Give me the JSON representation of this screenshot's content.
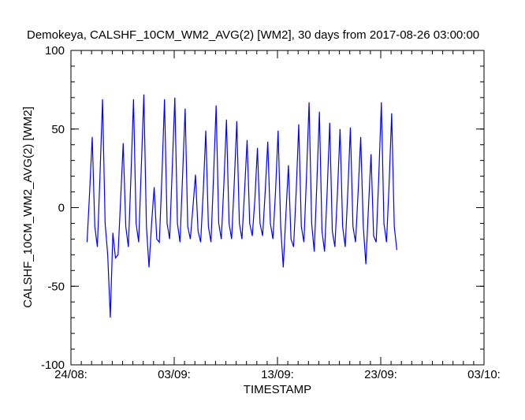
{
  "chart_data": {
    "type": "line",
    "title": "Demokeya, CALSHF_10CM_WM2_AVG(2) [WM2], 30 days from  2017-08-26 03:00:00",
    "x_label": "TIMESTAMP",
    "y_label": "CALSHF_10CM_WM2_AVG(2) [WM2]",
    "xlim": [
      0,
      40
    ],
    "xticks": [
      {
        "value": 0,
        "label": "24/08:"
      },
      {
        "value": 10,
        "label": "03/09:"
      },
      {
        "value": 20,
        "label": "13/09:"
      },
      {
        "value": 30,
        "label": "23/09:"
      },
      {
        "value": 40,
        "label": "03/10:"
      }
    ],
    "ylim": [
      -100,
      100
    ],
    "yticks": [
      -100,
      -50,
      0,
      50,
      100
    ],
    "x": [
      1.56,
      1.81,
      2.06,
      2.31,
      2.56,
      2.81,
      3.06,
      3.31,
      3.56,
      3.81,
      4.06,
      4.31,
      4.56,
      4.81,
      5.06,
      5.31,
      5.56,
      5.81,
      6.06,
      6.31,
      6.56,
      6.81,
      7.06,
      7.31,
      7.56,
      7.81,
      8.06,
      8.31,
      8.56,
      8.81,
      9.06,
      9.31,
      9.56,
      9.81,
      10.06,
      10.31,
      10.56,
      10.81,
      11.06,
      11.31,
      11.56,
      11.81,
      12.06,
      12.31,
      12.56,
      12.81,
      13.06,
      13.31,
      13.56,
      13.81,
      14.06,
      14.31,
      14.56,
      14.81,
      15.06,
      15.31,
      15.56,
      15.81,
      16.06,
      16.31,
      16.56,
      16.81,
      17.06,
      17.31,
      17.56,
      17.81,
      18.06,
      18.31,
      18.56,
      18.81,
      19.06,
      19.31,
      19.56,
      19.81,
      20.06,
      20.31,
      20.56,
      20.81,
      21.06,
      21.31,
      21.56,
      21.81,
      22.06,
      22.31,
      22.56,
      22.81,
      23.06,
      23.31,
      23.56,
      23.81,
      24.06,
      24.31,
      24.56,
      24.81,
      25.06,
      25.31,
      25.56,
      25.81,
      26.06,
      26.31,
      26.56,
      26.81,
      27.06,
      27.31,
      27.56,
      27.81,
      28.06,
      28.31,
      28.56,
      28.81,
      29.06,
      29.31,
      29.56,
      29.81,
      30.06,
      30.31,
      30.56,
      30.81,
      31.06,
      31.31,
      31.56
    ],
    "series": [
      {
        "color": "#0000ff",
        "values": [
          -22,
          10,
          45,
          -12,
          -25,
          20,
          69,
          -10,
          -30,
          -70,
          -16,
          -32,
          -30,
          5,
          41,
          -12,
          -25,
          20,
          69,
          -10,
          -22,
          25,
          72,
          -12,
          -38,
          -10,
          13,
          -20,
          -22,
          20,
          69,
          -10,
          -20,
          25,
          70,
          -10,
          -22,
          20,
          63,
          -12,
          -20,
          0,
          21,
          -15,
          -22,
          10,
          49,
          -12,
          -22,
          20,
          65,
          -10,
          -20,
          15,
          56,
          -10,
          -20,
          15,
          55,
          -10,
          -20,
          10,
          43,
          -10,
          -18,
          5,
          38,
          -10,
          -18,
          10,
          42,
          -10,
          -20,
          10,
          49,
          -12,
          -38,
          -5,
          27,
          -20,
          -25,
          10,
          53,
          -12,
          -22,
          20,
          67,
          -10,
          -28,
          15,
          61,
          -15,
          -28,
          10,
          54,
          -15,
          -25,
          10,
          50,
          -12,
          -25,
          10,
          51,
          -12,
          -22,
          10,
          45,
          -12,
          -36,
          0,
          34,
          -18,
          -22,
          20,
          67,
          -10,
          -22,
          15,
          60,
          -12,
          -27
        ]
      }
    ]
  }
}
